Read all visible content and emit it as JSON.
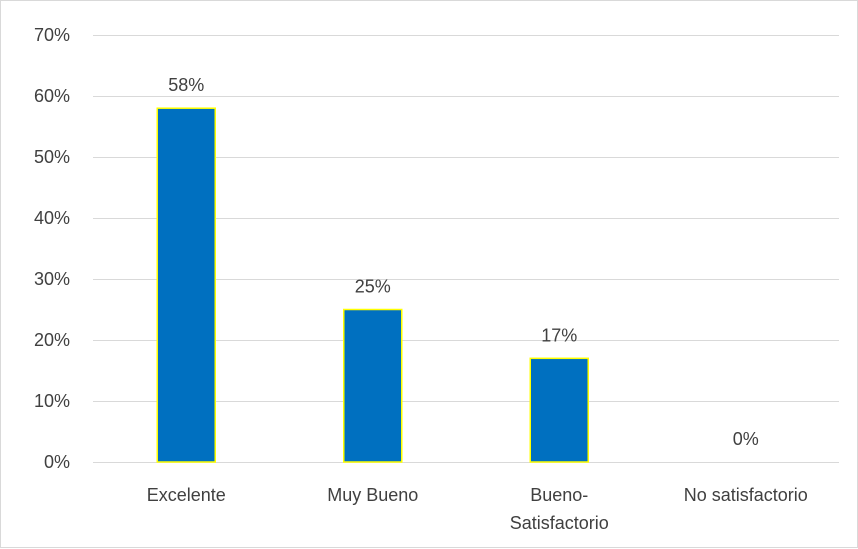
{
  "chart_data": {
    "type": "bar",
    "categories": [
      "Excelente",
      "Muy Bueno",
      "Bueno-Satisfactorio",
      "No satisfactorio"
    ],
    "category_label_lines": [
      [
        "Excelente"
      ],
      [
        "Muy Bueno"
      ],
      [
        "Bueno-",
        "Satisfactorio"
      ],
      [
        "No satisfactorio"
      ]
    ],
    "values": [
      58,
      25,
      17,
      0
    ],
    "data_labels": [
      "58%",
      "25%",
      "17%",
      "0%"
    ],
    "ylim": [
      0,
      70
    ],
    "yticks": [
      0,
      10,
      20,
      30,
      40,
      50,
      60,
      70
    ],
    "ytick_labels": [
      "0%",
      "10%",
      "20%",
      "30%",
      "40%",
      "50%",
      "60%",
      "70%"
    ],
    "title": "",
    "xlabel": "",
    "ylabel": "",
    "grid": true,
    "legend": "none",
    "colors": {
      "bar_fill": "#0070c0",
      "bar_outline": "#ffff00",
      "gridline": "#d9d9d9",
      "text": "#404040"
    }
  }
}
